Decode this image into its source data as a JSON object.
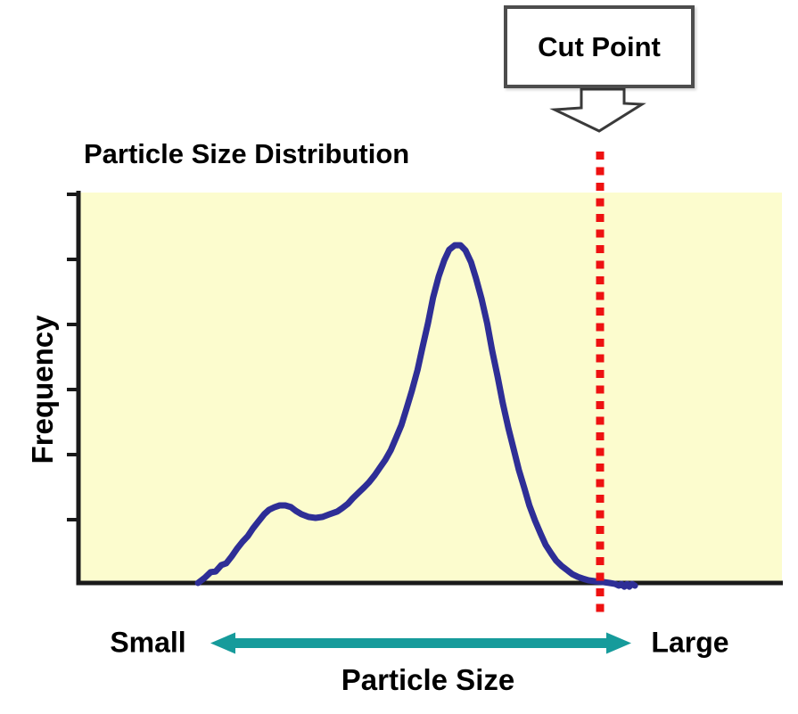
{
  "figure": {
    "title": "Particle Size Distribution",
    "callout": {
      "label": "Cut Point"
    },
    "y_axis_label": "Frequency",
    "x_axis_label": "Particle Size",
    "x_min_label": "Small",
    "x_max_label": "Large"
  },
  "colors": {
    "plot_bg": "#FCFCCE",
    "curve": "#2E2E96",
    "cut_line": "#EE1111",
    "axis": "#1A1A1A",
    "range_arrow": "#169B9B",
    "callout_border": "#4D4D4D",
    "text": "#000000"
  },
  "chart_data": {
    "type": "line",
    "title": "Particle Size Distribution",
    "xlabel": "Particle Size",
    "ylabel": "Frequency",
    "x_axis_end_labels": [
      "Small",
      "Large"
    ],
    "axis_numeric_labels": false,
    "grid": false,
    "legend": false,
    "x_range_frac": [
      0,
      1
    ],
    "y_range_frac": [
      0,
      1
    ],
    "peaks": {
      "minor_bump": {
        "x_frac": 0.29,
        "rel_height": 0.23
      },
      "main_peak": {
        "x_frac": 0.54,
        "rel_height": 1.0
      }
    },
    "cut_point": {
      "label": "Cut Point",
      "x_frac": 0.7415
    },
    "y_tick_count": 6,
    "curve_points": [
      [
        0.17,
        0.0
      ],
      [
        0.18,
        0.016
      ],
      [
        0.188,
        0.032
      ],
      [
        0.195,
        0.034
      ],
      [
        0.203,
        0.053
      ],
      [
        0.21,
        0.058
      ],
      [
        0.218,
        0.079
      ],
      [
        0.226,
        0.103
      ],
      [
        0.233,
        0.121
      ],
      [
        0.241,
        0.139
      ],
      [
        0.248,
        0.161
      ],
      [
        0.256,
        0.182
      ],
      [
        0.264,
        0.203
      ],
      [
        0.271,
        0.216
      ],
      [
        0.279,
        0.224
      ],
      [
        0.286,
        0.229
      ],
      [
        0.294,
        0.229
      ],
      [
        0.302,
        0.224
      ],
      [
        0.309,
        0.213
      ],
      [
        0.317,
        0.203
      ],
      [
        0.327,
        0.195
      ],
      [
        0.337,
        0.192
      ],
      [
        0.347,
        0.195
      ],
      [
        0.357,
        0.203
      ],
      [
        0.368,
        0.211
      ],
      [
        0.375,
        0.221
      ],
      [
        0.383,
        0.234
      ],
      [
        0.39,
        0.25
      ],
      [
        0.398,
        0.266
      ],
      [
        0.406,
        0.282
      ],
      [
        0.413,
        0.297
      ],
      [
        0.421,
        0.318
      ],
      [
        0.428,
        0.339
      ],
      [
        0.436,
        0.363
      ],
      [
        0.444,
        0.392
      ],
      [
        0.451,
        0.426
      ],
      [
        0.459,
        0.466
      ],
      [
        0.466,
        0.513
      ],
      [
        0.474,
        0.568
      ],
      [
        0.482,
        0.629
      ],
      [
        0.489,
        0.695
      ],
      [
        0.497,
        0.768
      ],
      [
        0.504,
        0.842
      ],
      [
        0.512,
        0.905
      ],
      [
        0.52,
        0.953
      ],
      [
        0.527,
        0.984
      ],
      [
        0.535,
        0.997
      ],
      [
        0.543,
        0.997
      ],
      [
        0.55,
        0.982
      ],
      [
        0.558,
        0.947
      ],
      [
        0.565,
        0.9
      ],
      [
        0.573,
        0.839
      ],
      [
        0.581,
        0.766
      ],
      [
        0.588,
        0.687
      ],
      [
        0.596,
        0.608
      ],
      [
        0.603,
        0.532
      ],
      [
        0.611,
        0.458
      ],
      [
        0.619,
        0.392
      ],
      [
        0.626,
        0.334
      ],
      [
        0.634,
        0.279
      ],
      [
        0.641,
        0.229
      ],
      [
        0.649,
        0.184
      ],
      [
        0.657,
        0.145
      ],
      [
        0.664,
        0.113
      ],
      [
        0.672,
        0.087
      ],
      [
        0.679,
        0.066
      ],
      [
        0.687,
        0.05
      ],
      [
        0.695,
        0.037
      ],
      [
        0.702,
        0.026
      ],
      [
        0.71,
        0.018
      ],
      [
        0.717,
        0.013
      ],
      [
        0.725,
        0.008
      ],
      [
        0.735,
        0.005
      ],
      [
        0.745,
        0.003
      ],
      [
        0.755,
        0.0
      ],
      [
        0.763,
        -0.003
      ],
      [
        0.768,
        -0.008
      ],
      [
        0.772,
        -0.003
      ],
      [
        0.776,
        -0.011
      ],
      [
        0.78,
        -0.003
      ],
      [
        0.783,
        -0.011
      ],
      [
        0.787,
        -0.003
      ],
      [
        0.791,
        -0.008
      ]
    ]
  }
}
